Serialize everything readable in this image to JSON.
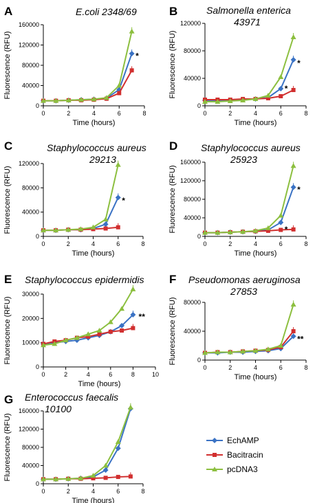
{
  "colors": {
    "EchAMP": "#3a72c4",
    "Bacitracin": "#d12f2f",
    "pcDNA3": "#8cbf3f",
    "axis": "#000000"
  },
  "legend": [
    {
      "name": "EchAMP",
      "marker": "diamond"
    },
    {
      "name": "Bacitracin",
      "marker": "square"
    },
    {
      "name": "pcDNA3",
      "marker": "triangle"
    }
  ],
  "chart_data": [
    {
      "type": "line",
      "panel": "A",
      "title": "E.coli 2348/69",
      "xlabel": "Time (hours)",
      "ylabel": "Fluorescence (RFU)",
      "xlim": [
        0,
        8
      ],
      "ylim": [
        0,
        160000
      ],
      "xticks": [
        0,
        2,
        4,
        6,
        8
      ],
      "yticks": [
        0,
        40000,
        80000,
        120000,
        160000
      ],
      "x": [
        0,
        1,
        2,
        3,
        4,
        5,
        6,
        7
      ],
      "series": [
        {
          "name": "EchAMP",
          "values": [
            10000,
            10000,
            11000,
            12000,
            13000,
            15000,
            32000,
            103000
          ]
        },
        {
          "name": "Bacitracin",
          "values": [
            10000,
            10000,
            11000,
            11000,
            12000,
            14000,
            25000,
            70000
          ]
        },
        {
          "name": "pcDNA3",
          "values": [
            10000,
            10000,
            11000,
            12000,
            13000,
            16000,
            40000,
            147000
          ]
        }
      ],
      "annotations": [
        {
          "text": "*",
          "x": 7.3,
          "y": 100000
        }
      ]
    },
    {
      "type": "line",
      "panel": "B",
      "title": "Salmonella enterica 43971",
      "xlabel": "Time (hours)",
      "ylabel": "Fluorescence (RFU)",
      "xlim": [
        0,
        8
      ],
      "ylim": [
        0,
        120000
      ],
      "xticks": [
        0,
        2,
        4,
        6,
        8
      ],
      "yticks": [
        0,
        40000,
        80000,
        120000
      ],
      "x": [
        0,
        1,
        2,
        3,
        4,
        5,
        6,
        7
      ],
      "series": [
        {
          "name": "EchAMP",
          "values": [
            8000,
            8000,
            8000,
            9000,
            10000,
            12000,
            25000,
            67000
          ]
        },
        {
          "name": "Bacitracin",
          "values": [
            9000,
            9000,
            9000,
            10000,
            10000,
            11000,
            14000,
            23000
          ]
        },
        {
          "name": "pcDNA3",
          "values": [
            6000,
            6000,
            7000,
            8000,
            10000,
            15000,
            42000,
            100000
          ]
        }
      ],
      "annotations": [
        {
          "text": "*",
          "x": 7.3,
          "y": 63000
        },
        {
          "text": "*",
          "x": 6.3,
          "y": 26000
        }
      ]
    },
    {
      "type": "line",
      "panel": "C",
      "title": "Staphylococcus aureus 29213",
      "xlabel": "Time (hours)",
      "ylabel": "Fluorescence (RFU)",
      "xlim": [
        0,
        8
      ],
      "ylim": [
        0,
        120000
      ],
      "xticks": [
        0,
        2,
        4,
        6,
        8
      ],
      "yticks": [
        0,
        40000,
        80000,
        120000
      ],
      "x": [
        0,
        1,
        2,
        3,
        4,
        5,
        6
      ],
      "series": [
        {
          "name": "EchAMP",
          "values": [
            10000,
            10000,
            11000,
            11000,
            13000,
            20000,
            64000
          ]
        },
        {
          "name": "Bacitracin",
          "values": [
            10000,
            10000,
            11000,
            11000,
            12000,
            13000,
            15000
          ]
        },
        {
          "name": "pcDNA3",
          "values": [
            10000,
            10000,
            11000,
            12000,
            15000,
            28000,
            118000
          ]
        }
      ],
      "annotations": [
        {
          "text": "*",
          "x": 6.3,
          "y": 60000
        }
      ]
    },
    {
      "type": "line",
      "panel": "D",
      "title": "Staphylococcus aureus 25923",
      "xlabel": "Time (hours)",
      "ylabel": "Fluorescence (RFU)",
      "xlim": [
        0,
        8
      ],
      "ylim": [
        0,
        160000
      ],
      "xticks": [
        0,
        2,
        4,
        6,
        8
      ],
      "yticks": [
        0,
        40000,
        80000,
        120000,
        160000
      ],
      "x": [
        0,
        1,
        2,
        3,
        4,
        5,
        6,
        7
      ],
      "series": [
        {
          "name": "EchAMP",
          "values": [
            8000,
            8000,
            9000,
            10000,
            11000,
            14000,
            30000,
            106000
          ]
        },
        {
          "name": "Bacitracin",
          "values": [
            8000,
            8000,
            9000,
            10000,
            11000,
            12000,
            14000,
            15000
          ]
        },
        {
          "name": "pcDNA3",
          "values": [
            8000,
            8000,
            9000,
            10000,
            12000,
            18000,
            45000,
            152000
          ]
        }
      ],
      "annotations": [
        {
          "text": "*",
          "x": 7.3,
          "y": 102000
        },
        {
          "text": "*",
          "x": 6.3,
          "y": 16000
        }
      ]
    },
    {
      "type": "line",
      "panel": "E",
      "title": "Staphylococcus epidermidis",
      "xlabel": "Time (hours)",
      "ylabel": "Fluorescence (RFU)",
      "xlim": [
        0,
        10
      ],
      "ylim": [
        0,
        30000
      ],
      "xticks": [
        0,
        2,
        4,
        6,
        8,
        10
      ],
      "yticks": [
        0,
        10000,
        20000,
        30000
      ],
      "x": [
        0,
        1,
        2,
        3,
        4,
        5,
        6,
        7,
        8
      ],
      "series": [
        {
          "name": "EchAMP",
          "values": [
            9500,
            10000,
            10500,
            11000,
            12000,
            13000,
            14500,
            17000,
            21500
          ]
        },
        {
          "name": "Bacitracin",
          "values": [
            9500,
            10500,
            11000,
            12000,
            12500,
            13500,
            14500,
            15000,
            16000
          ]
        },
        {
          "name": "pcDNA3",
          "values": [
            9000,
            9500,
            11000,
            12000,
            13500,
            15000,
            18500,
            24000,
            32000
          ]
        }
      ],
      "annotations": [
        {
          "text": "**",
          "x": 8.5,
          "y": 21000
        }
      ]
    },
    {
      "type": "line",
      "panel": "F",
      "title": "Pseudomonas aeruginosa 27853",
      "xlabel": "Time (hours)",
      "ylabel": "Fluorescence (RFU)",
      "xlim": [
        0,
        8
      ],
      "ylim": [
        0,
        80000
      ],
      "xticks": [
        0,
        2,
        4,
        6,
        8
      ],
      "yticks": [
        0,
        40000,
        80000
      ],
      "x": [
        0,
        1,
        2,
        3,
        4,
        5,
        6,
        7
      ],
      "series": [
        {
          "name": "EchAMP",
          "values": [
            10000,
            10000,
            11000,
            11000,
            12000,
            13000,
            16000,
            33000
          ]
        },
        {
          "name": "Bacitracin",
          "values": [
            10000,
            11000,
            11000,
            12000,
            13000,
            14000,
            18000,
            40000
          ]
        },
        {
          "name": "pcDNA3",
          "values": [
            10000,
            11000,
            11000,
            12000,
            13000,
            15000,
            20000,
            77000
          ]
        }
      ],
      "annotations": [
        {
          "text": "**",
          "x": 7.3,
          "y": 30000
        }
      ]
    },
    {
      "type": "line",
      "panel": "G",
      "title": "Enterococcus faecalis 10100",
      "xlabel": "Time (hours)",
      "ylabel": "Fluorescence (RFU)",
      "xlim": [
        0,
        8
      ],
      "ylim": [
        0,
        160000
      ],
      "xticks": [
        0,
        2,
        4,
        6,
        8
      ],
      "yticks": [
        0,
        40000,
        80000,
        120000,
        160000
      ],
      "x": [
        0,
        1,
        2,
        3,
        4,
        5,
        6,
        7
      ],
      "series": [
        {
          "name": "EchAMP",
          "values": [
            10000,
            10000,
            11000,
            12000,
            15000,
            30000,
            78000,
            165000
          ]
        },
        {
          "name": "Bacitracin",
          "values": [
            10000,
            10000,
            11000,
            11000,
            12000,
            13000,
            15000,
            16000
          ]
        },
        {
          "name": "pcDNA3",
          "values": [
            10000,
            10000,
            11000,
            12000,
            18000,
            40000,
            92000,
            168000
          ]
        }
      ],
      "annotations": []
    }
  ]
}
